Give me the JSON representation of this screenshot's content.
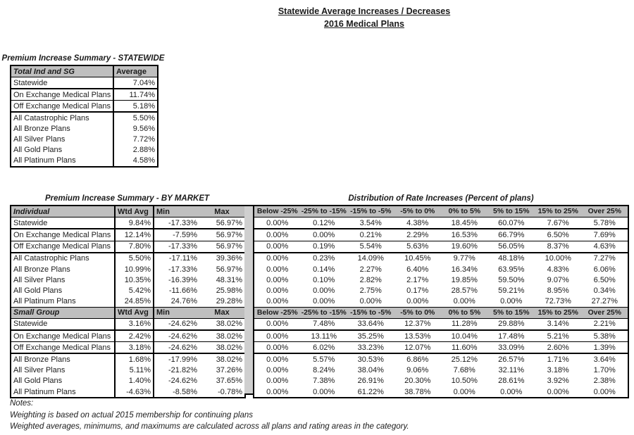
{
  "title": {
    "line1": "Statewide Average Increases / Decreases",
    "line2": "2016 Medical Plans"
  },
  "statewide_summary": {
    "caption": "Premium Increase Summary - STATEWIDE",
    "header": {
      "label": "Total Ind and SG",
      "value": "Average"
    },
    "rows": [
      {
        "label": "Statewide",
        "value": "7.04%"
      },
      {
        "label": "On Exchange Medical Plans",
        "value": "11.74%"
      },
      {
        "label": "Off Exchange Medical Plans",
        "value": "5.18%"
      },
      {
        "label": "All Catastrophic Plans",
        "value": "5.50%"
      },
      {
        "label": "All Bronze Plans",
        "value": "9.56%"
      },
      {
        "label": "All Silver Plans",
        "value": "7.72%"
      },
      {
        "label": "All Gold Plans",
        "value": "2.88%"
      },
      {
        "label": "All Platinum Plans",
        "value": "4.58%"
      }
    ]
  },
  "by_market": {
    "caption": "Premium Increase Summary - BY MARKET",
    "columns": [
      "Wtd Avg",
      "Min",
      "Max"
    ],
    "sections": [
      {
        "name": "Individual",
        "rows": [
          {
            "label": "Statewide",
            "wtd_avg": "9.84%",
            "min": "-17.33%",
            "max": "56.97%"
          },
          {
            "label": "On Exchange Medical Plans",
            "wtd_avg": "12.14%",
            "min": "-7.59%",
            "max": "56.97%"
          },
          {
            "label": "Off Exchange Medical Plans",
            "wtd_avg": "7.80%",
            "min": "-17.33%",
            "max": "56.97%"
          },
          {
            "label": "All Catastrophic Plans",
            "wtd_avg": "5.50%",
            "min": "-17.11%",
            "max": "39.36%"
          },
          {
            "label": "All Bronze Plans",
            "wtd_avg": "10.99%",
            "min": "-17.33%",
            "max": "56.97%"
          },
          {
            "label": "All Silver Plans",
            "wtd_avg": "10.35%",
            "min": "-16.39%",
            "max": "48.31%"
          },
          {
            "label": "All Gold Plans",
            "wtd_avg": "5.42%",
            "min": "-11.66%",
            "max": "25.98%"
          },
          {
            "label": "All Platinum Plans",
            "wtd_avg": "24.85%",
            "min": "24.76%",
            "max": "29.28%"
          }
        ]
      },
      {
        "name": "Small Group",
        "rows": [
          {
            "label": "Statewide",
            "wtd_avg": "3.16%",
            "min": "-24.62%",
            "max": "38.02%"
          },
          {
            "label": "On Exchange Medical Plans",
            "wtd_avg": "2.42%",
            "min": "-24.62%",
            "max": "38.02%"
          },
          {
            "label": "Off Exchange Medical Plans",
            "wtd_avg": "3.18%",
            "min": "-24.62%",
            "max": "38.02%"
          },
          {
            "label": "All Bronze Plans",
            "wtd_avg": "1.68%",
            "min": "-17.99%",
            "max": "38.02%"
          },
          {
            "label": "All Silver Plans",
            "wtd_avg": "5.11%",
            "min": "-21.82%",
            "max": "37.26%"
          },
          {
            "label": "All Gold Plans",
            "wtd_avg": "1.40%",
            "min": "-24.62%",
            "max": "37.65%"
          },
          {
            "label": "All Platinum Plans",
            "wtd_avg": "-4.63%",
            "min": "-8.58%",
            "max": "-0.78%"
          }
        ]
      }
    ]
  },
  "distribution": {
    "caption": "Distribution of Rate Increases (Percent of plans)",
    "columns": [
      "Below -25%",
      "-25% to -15%",
      "-15% to -5%",
      "-5% to 0%",
      "0% to 5%",
      "5% to 15%",
      "15% to 25%",
      "Over 25%"
    ],
    "sections": [
      {
        "rows": [
          [
            "0.00%",
            "0.12%",
            "3.54%",
            "4.38%",
            "18.45%",
            "60.07%",
            "7.67%",
            "5.78%"
          ],
          [
            "0.00%",
            "0.00%",
            "0.21%",
            "2.29%",
            "16.53%",
            "66.79%",
            "6.50%",
            "7.69%"
          ],
          [
            "0.00%",
            "0.19%",
            "5.54%",
            "5.63%",
            "19.60%",
            "56.05%",
            "8.37%",
            "4.63%"
          ],
          [
            "0.00%",
            "0.23%",
            "14.09%",
            "10.45%",
            "9.77%",
            "48.18%",
            "10.00%",
            "7.27%"
          ],
          [
            "0.00%",
            "0.14%",
            "2.27%",
            "6.40%",
            "16.34%",
            "63.95%",
            "4.83%",
            "6.06%"
          ],
          [
            "0.00%",
            "0.10%",
            "2.82%",
            "2.17%",
            "19.85%",
            "59.50%",
            "9.07%",
            "6.50%"
          ],
          [
            "0.00%",
            "0.00%",
            "2.75%",
            "0.17%",
            "28.57%",
            "59.21%",
            "8.95%",
            "0.34%"
          ],
          [
            "0.00%",
            "0.00%",
            "0.00%",
            "0.00%",
            "0.00%",
            "0.00%",
            "72.73%",
            "27.27%"
          ]
        ]
      },
      {
        "rows": [
          [
            "0.00%",
            "7.48%",
            "33.64%",
            "12.37%",
            "11.28%",
            "29.88%",
            "3.14%",
            "2.21%"
          ],
          [
            "0.00%",
            "13.11%",
            "35.25%",
            "13.53%",
            "10.04%",
            "17.48%",
            "5.21%",
            "5.38%"
          ],
          [
            "0.00%",
            "6.02%",
            "33.23%",
            "12.07%",
            "11.60%",
            "33.09%",
            "2.60%",
            "1.39%"
          ],
          [
            "0.00%",
            "5.57%",
            "30.53%",
            "6.86%",
            "25.12%",
            "26.57%",
            "1.71%",
            "3.64%"
          ],
          [
            "0.00%",
            "8.24%",
            "38.04%",
            "9.06%",
            "7.68%",
            "32.11%",
            "3.18%",
            "1.70%"
          ],
          [
            "0.00%",
            "7.38%",
            "26.91%",
            "20.30%",
            "10.50%",
            "28.61%",
            "3.92%",
            "2.38%"
          ],
          [
            "0.00%",
            "0.00%",
            "61.22%",
            "38.78%",
            "0.00%",
            "0.00%",
            "0.00%",
            "0.00%"
          ]
        ]
      }
    ]
  },
  "notes": {
    "lines": [
      "Notes:",
      "Weighting is based on actual 2015 membership for continuing plans",
      "Weighted averages, minimums, and maximums are calculated across all plans and rating areas in the category."
    ]
  },
  "colors": {
    "header_bg": "#bfbfbf",
    "divider": "#cfcfcf",
    "border": "#000000"
  }
}
